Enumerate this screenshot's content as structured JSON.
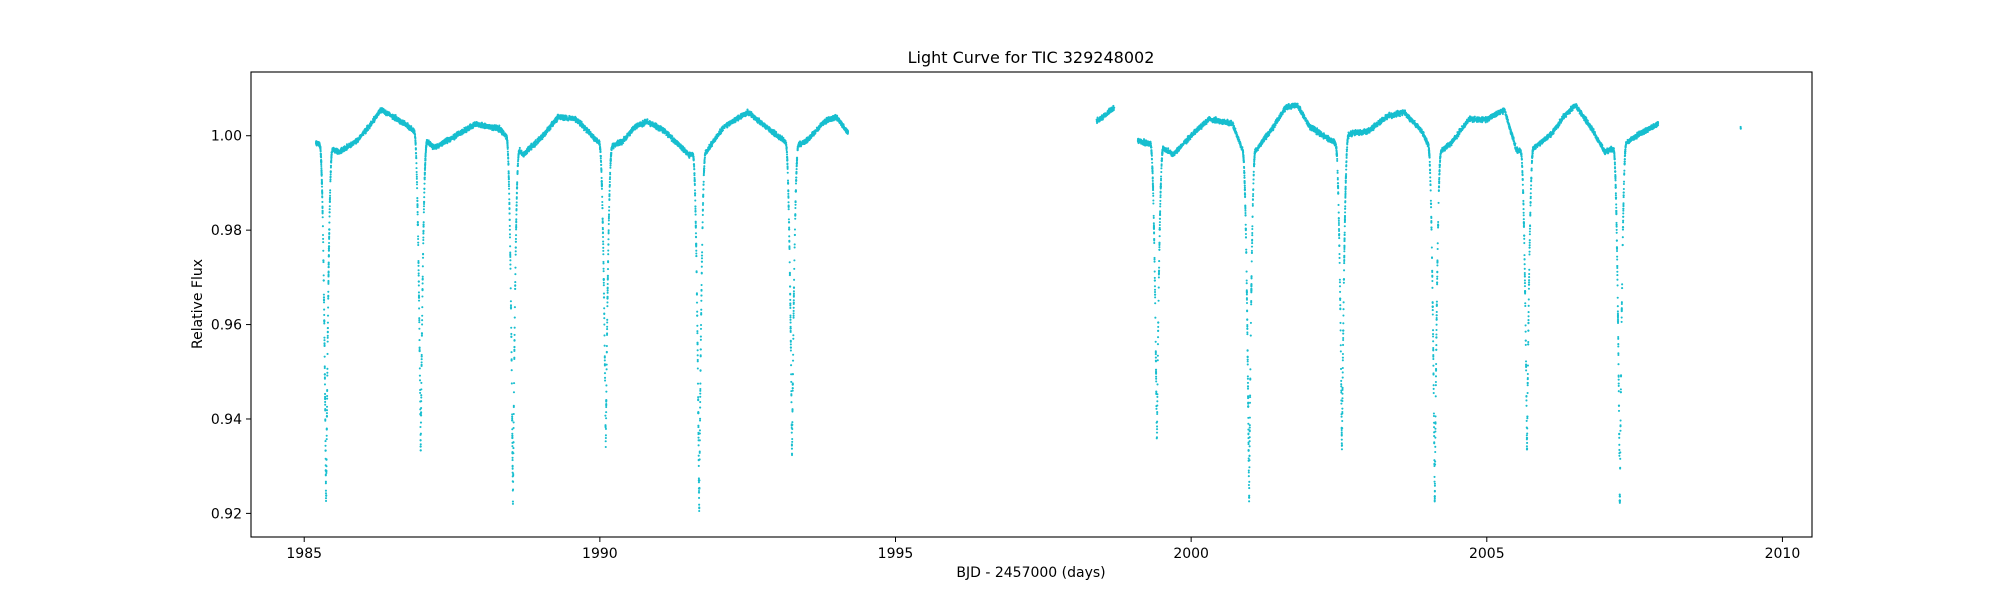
{
  "chart_data": {
    "type": "scatter",
    "title": "Light Curve for TIC 329248002",
    "xlabel": "BJD - 2457000 (days)",
    "ylabel": "Relative Flux",
    "xlim": [
      1984.1,
      2010.5
    ],
    "ylim": [
      0.915,
      1.0135
    ],
    "x_ticks": [
      1985,
      1990,
      1995,
      2000,
      2005,
      2010
    ],
    "x_tick_labels": [
      "1985",
      "1990",
      "1995",
      "2000",
      "2005",
      "2010"
    ],
    "y_ticks": [
      0.92,
      0.94,
      0.96,
      0.98,
      1.0
    ],
    "y_tick_labels": [
      "0.92",
      "0.94",
      "0.96",
      "0.98",
      "1.00"
    ],
    "grid": false,
    "legend": "none",
    "marker_color": "#17becf",
    "series": [
      {
        "segments": [
          {
            "t_start": 1985.2,
            "t_end": 1994.2,
            "envelope": [
              [
                1985.2,
                0.9985
              ],
              [
                1985.6,
                0.9965
              ],
              [
                1985.9,
                0.999
              ],
              [
                1986.1,
                1.002
              ],
              [
                1986.3,
                1.0055
              ],
              [
                1986.7,
                1.0025
              ],
              [
                1987.2,
                0.9975
              ],
              [
                1987.5,
                0.9995
              ],
              [
                1987.9,
                1.0025
              ],
              [
                1988.3,
                1.0015
              ],
              [
                1988.7,
                0.996
              ],
              [
                1989.0,
                0.9995
              ],
              [
                1989.3,
                1.004
              ],
              [
                1989.6,
                1.0035
              ],
              [
                1990.1,
                0.997
              ],
              [
                1990.4,
                0.999
              ],
              [
                1990.6,
                1.002
              ],
              [
                1990.8,
                1.003
              ],
              [
                1991.1,
                1.001
              ],
              [
                1991.5,
                0.996
              ],
              [
                1991.8,
                0.9965
              ],
              [
                1992.1,
                1.002
              ],
              [
                1992.5,
                1.005
              ],
              [
                1993.0,
                1.0
              ],
              [
                1993.3,
                0.9975
              ],
              [
                1993.5,
                0.999
              ],
              [
                1993.8,
                1.003
              ],
              [
                1994.0,
                1.004
              ],
              [
                1994.2,
                1.0005
              ]
            ]
          },
          {
            "t_start": 1998.4,
            "t_end": 1998.7,
            "envelope": [
              [
                1998.4,
                1.003
              ],
              [
                1998.7,
                1.006
              ]
            ]
          },
          {
            "t_start": 1999.1,
            "t_end": 2007.9,
            "envelope": [
              [
                1999.1,
                0.999
              ],
              [
                1999.5,
                0.9975
              ],
              [
                1999.7,
                0.996
              ],
              [
                2000.0,
                1.0
              ],
              [
                2000.3,
                1.0035
              ],
              [
                2000.7,
                1.0025
              ],
              [
                2000.9,
                0.996
              ],
              [
                2001.1,
                0.997
              ],
              [
                2001.4,
                1.002
              ],
              [
                2001.6,
                1.006
              ],
              [
                2001.8,
                1.0065
              ],
              [
                2002.0,
                1.002
              ],
              [
                2002.3,
                0.9995
              ],
              [
                2002.5,
                0.998
              ],
              [
                2002.7,
                1.0005
              ],
              [
                2003.0,
                1.001
              ],
              [
                2003.3,
                1.004
              ],
              [
                2003.6,
                1.005
              ],
              [
                2003.9,
                1.001
              ],
              [
                2004.1,
                0.9955
              ],
              [
                2004.4,
                0.9985
              ],
              [
                2004.7,
                1.0035
              ],
              [
                2005.0,
                1.0035
              ],
              [
                2005.3,
                1.0055
              ],
              [
                2005.5,
                0.997
              ],
              [
                2005.7,
                0.9965
              ],
              [
                2005.9,
                0.9985
              ],
              [
                2006.1,
                1.0005
              ],
              [
                2006.3,
                1.004
              ],
              [
                2006.5,
                1.0065
              ],
              [
                2006.8,
                1.001
              ],
              [
                2007.0,
                0.9965
              ],
              [
                2007.3,
                0.998
              ],
              [
                2007.6,
                1.0005
              ],
              [
                2007.9,
                1.0025
              ]
            ]
          },
          {
            "t_start": 2009.3,
            "t_end": 2009.3,
            "envelope": [
              [
                2009.3,
                1.0018
              ]
            ]
          }
        ],
        "eclipses": [
          {
            "t": 1985.37,
            "depth": 0.921
          },
          {
            "t": 1986.97,
            "depth": 0.933
          },
          {
            "t": 1988.53,
            "depth": 0.922
          },
          {
            "t": 1990.1,
            "depth": 0.934
          },
          {
            "t": 1991.68,
            "depth": 0.92
          },
          {
            "t": 1993.25,
            "depth": 0.932
          },
          {
            "t": 1999.42,
            "depth": 0.934
          },
          {
            "t": 2000.98,
            "depth": 0.922
          },
          {
            "t": 2002.55,
            "depth": 0.933
          },
          {
            "t": 2004.12,
            "depth": 0.922
          },
          {
            "t": 2005.68,
            "depth": 0.933
          },
          {
            "t": 2007.25,
            "depth": 0.922
          }
        ]
      }
    ]
  }
}
